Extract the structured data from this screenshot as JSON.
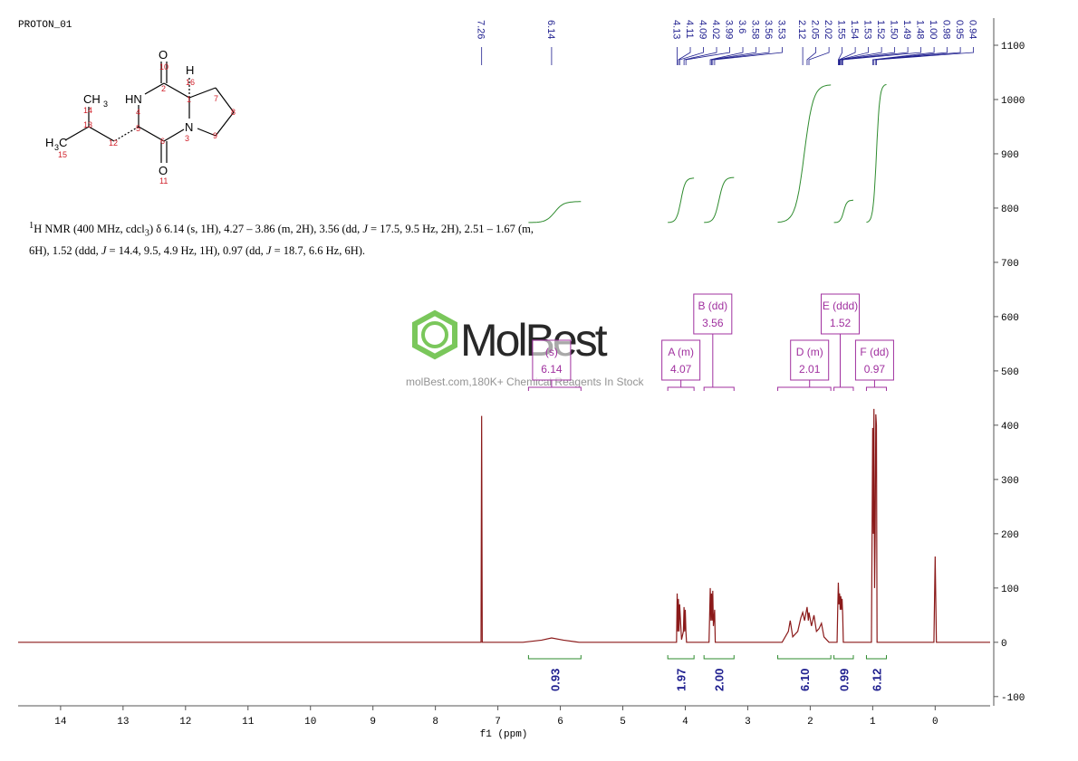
{
  "chart_data": {
    "type": "line",
    "title": "PROTON_01",
    "x_label": "f1 (ppm)",
    "xlim": [
      14.68,
      -0.88
    ],
    "xticks": [
      14,
      13,
      12,
      11,
      10,
      9,
      8,
      7,
      6,
      5,
      4,
      3,
      2,
      1,
      0
    ],
    "ylim": [
      -117,
      1150
    ],
    "yticks": [
      -100,
      0,
      100,
      200,
      300,
      400,
      500,
      600,
      700,
      800,
      900,
      1000,
      1100
    ],
    "color": "#8b1a1a",
    "x": [
      14.68,
      7.3,
      7.27,
      7.26,
      7.25,
      6.6,
      6.3,
      6.14,
      5.95,
      5.7,
      4.2,
      4.14,
      4.13,
      4.12,
      4.11,
      4.1,
      4.09,
      4.06,
      4.03,
      4.02,
      4.01,
      4.0,
      3.99,
      3.98,
      3.62,
      3.61,
      3.6,
      3.59,
      3.58,
      3.57,
      3.56,
      3.55,
      3.54,
      3.53,
      3.52,
      2.45,
      2.35,
      2.32,
      2.28,
      2.2,
      2.15,
      2.12,
      2.09,
      2.05,
      2.03,
      2.02,
      1.98,
      1.94,
      1.9,
      1.86,
      1.82,
      1.78,
      1.7,
      1.57,
      1.56,
      1.55,
      1.54,
      1.53,
      1.52,
      1.51,
      1.5,
      1.49,
      1.48,
      1.47,
      1.02,
      1.0,
      0.99,
      0.98,
      0.97,
      0.96,
      0.95,
      0.94,
      0.93,
      0.02,
      0.0,
      -0.02,
      -0.88
    ],
    "values": [
      0,
      0,
      0,
      417,
      0,
      0,
      4,
      8,
      4,
      0,
      0,
      0,
      90,
      20,
      80,
      20,
      70,
      5,
      20,
      65,
      20,
      60,
      20,
      0,
      0,
      50,
      100,
      40,
      90,
      40,
      95,
      30,
      45,
      60,
      0,
      0,
      20,
      40,
      10,
      20,
      45,
      55,
      40,
      65,
      40,
      55,
      30,
      50,
      20,
      25,
      35,
      10,
      0,
      0,
      60,
      110,
      70,
      90,
      60,
      85,
      60,
      80,
      50,
      0,
      0,
      395,
      200,
      430,
      100,
      200,
      420,
      400,
      0,
      0,
      158,
      0,
      0
    ],
    "peak_labels": [
      7.26,
      6.14,
      4.13,
      4.11,
      4.09,
      4.02,
      3.99,
      3.6,
      3.58,
      3.56,
      3.53,
      2.12,
      2.05,
      2.02,
      1.55,
      1.54,
      1.53,
      1.52,
      {
        "value": 1.5,
        "label": "1.50"
      },
      1.49,
      1.48,
      {
        "value": 1,
        "label": "1.00"
      },
      0.98,
      0.95,
      0.94
    ],
    "integrals": [
      {
        "range": [
          6.51,
          5.67
        ],
        "value": 0.93
      },
      {
        "range": [
          4.28,
          3.86
        ],
        "value": 1.97
      },
      {
        "range": [
          3.7,
          3.22
        ],
        "value": 2,
        "label": "2.00"
      },
      {
        "range": [
          2.52,
          1.67
        ],
        "value": 6.1,
        "label": "6.10"
      },
      {
        "range": [
          1.62,
          1.31
        ],
        "value": 0.99
      },
      {
        "range": [
          1.1,
          0.78
        ],
        "value": 6.12
      }
    ],
    "multiplets": [
      {
        "name": "(s)",
        "shift": 6.14,
        "range": [
          6.51,
          5.67
        ]
      },
      {
        "name": "A (m)",
        "shift": 4.07,
        "range": [
          4.28,
          3.86
        ]
      },
      {
        "name": "B (dd)",
        "shift": 3.56,
        "range": [
          3.7,
          3.22
        ]
      },
      {
        "name": "D (m)",
        "shift": 2.01,
        "range": [
          2.52,
          1.67
        ]
      },
      {
        "name": "E (ddd)",
        "shift": 1.52,
        "range": [
          1.62,
          1.31
        ]
      },
      {
        "name": "F (dd)",
        "shift": 0.97,
        "range": [
          1.1,
          0.78
        ]
      }
    ]
  },
  "nmr_text": [
    "1",
    "H NMR (400 MHz, cdcl",
    "3",
    ") δ 6.14 (s, 1H), 4.27 – 3.86 (m, 2H), 3.56 (dd, ",
    "J",
    " = 17.5, 9.5 Hz, 2H), 2.51 – 1.67 (m, 6H), 1.52 (ddd, ",
    "J",
    " = 14.4, 9.5, 4.9 Hz, 1H), 0.97 (dd, ",
    "J",
    " = 18.7, 6.6 Hz, 6H)."
  ],
  "structure": {
    "atom_labels": [
      "O",
      "HN",
      "H",
      "N",
      "O",
      "CH",
      "3",
      "H",
      "3",
      "C"
    ],
    "numbers": [
      "10",
      "2",
      "16",
      "1",
      "7",
      "4",
      "8",
      "14",
      "5",
      "3",
      "13",
      "12",
      "9",
      "6",
      "15",
      "11"
    ]
  },
  "watermark": {
    "brand": "MolBest",
    "tagline": "molBest.com,180K+ Chemical Reagents In Stock"
  }
}
